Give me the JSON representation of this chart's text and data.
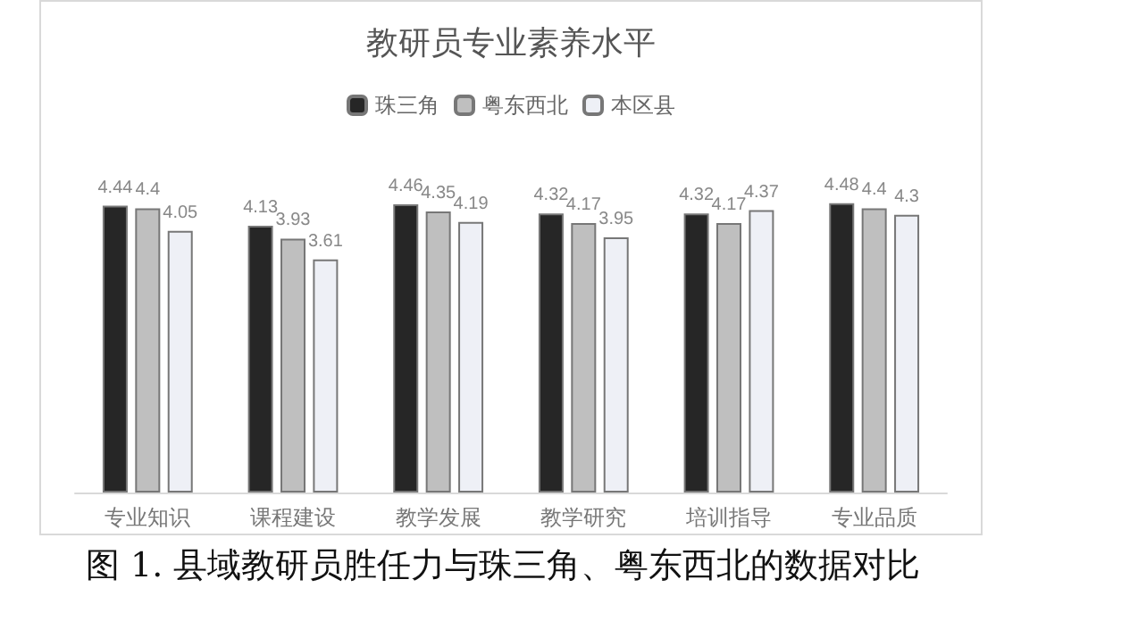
{
  "chart_data": {
    "type": "bar",
    "title": "教研员专业素养水平",
    "categories": [
      "专业知识",
      "课程建设",
      "教学发展",
      "教学研究",
      "培训指导",
      "专业品质"
    ],
    "series": [
      {
        "name": "珠三角",
        "color": "#262626",
        "values": [
          4.44,
          4.13,
          4.46,
          4.32,
          4.32,
          4.48
        ]
      },
      {
        "name": "粤东西北",
        "color": "#bfbfbf",
        "values": [
          4.4,
          3.93,
          4.35,
          4.17,
          4.17,
          4.4
        ]
      },
      {
        "name": "本区县",
        "color": "#eef0f6",
        "values": [
          4.05,
          3.61,
          4.19,
          3.95,
          4.37,
          4.3
        ]
      }
    ],
    "data_labels": true,
    "legend": "top",
    "annotations": [
      "图 1. 县域教研员胜任力与珠三角、粤东西北的数据对比"
    ]
  }
}
